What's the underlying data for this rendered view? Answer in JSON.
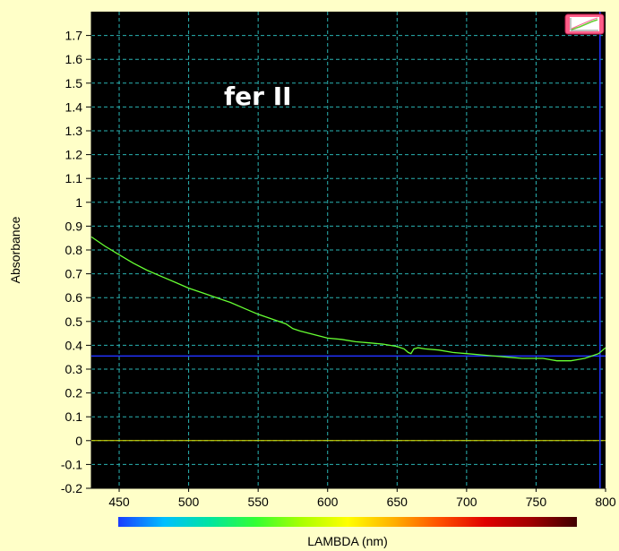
{
  "chart_data": {
    "type": "line",
    "title": "",
    "xlabel": "LAMBDA (nm)",
    "ylabel": "Absorbance",
    "annotation": "fer II",
    "xlim": [
      430,
      800
    ],
    "ylim": [
      -0.2,
      1.8
    ],
    "x_ticks": [
      450,
      500,
      550,
      600,
      650,
      700,
      750,
      800
    ],
    "y_ticks": [
      -0.2,
      -0.1,
      0,
      0.1,
      0.2,
      0.3,
      0.4,
      0.5,
      0.6,
      0.7,
      0.8,
      0.9,
      1,
      1.1,
      1.2,
      1.3,
      1.4,
      1.5,
      1.6,
      1.7
    ],
    "grid": true,
    "cursor": {
      "x": 796,
      "y": 0.355
    },
    "colors": {
      "background": "#ffffc8",
      "plot_background": "#000000",
      "curve": "#66ff33",
      "grid": "#2ab3b3",
      "cursor": "#2233ff",
      "zero_line": "#e6e600"
    },
    "series": [
      {
        "x": [
          430,
          440,
          450,
          460,
          470,
          480,
          490,
          500,
          510,
          520,
          530,
          540,
          550,
          560,
          570,
          575,
          580,
          590,
          600,
          610,
          620,
          630,
          640,
          650,
          655,
          658,
          660,
          662,
          665,
          670,
          680,
          690,
          700,
          710,
          720,
          730,
          740,
          750,
          755,
          760,
          765,
          770,
          775,
          780,
          785,
          790,
          795,
          800
        ],
        "y": [
          0.855,
          0.815,
          0.78,
          0.745,
          0.715,
          0.69,
          0.665,
          0.64,
          0.62,
          0.6,
          0.58,
          0.555,
          0.53,
          0.51,
          0.49,
          0.47,
          0.46,
          0.445,
          0.43,
          0.425,
          0.415,
          0.41,
          0.405,
          0.395,
          0.385,
          0.37,
          0.365,
          0.385,
          0.39,
          0.385,
          0.38,
          0.37,
          0.365,
          0.36,
          0.355,
          0.35,
          0.345,
          0.345,
          0.345,
          0.34,
          0.335,
          0.335,
          0.335,
          0.34,
          0.345,
          0.355,
          0.365,
          0.39
        ]
      }
    ]
  },
  "legend_icon": "chart-legend-icon",
  "spectrum_bar": {
    "colors": [
      "#1a3cff",
      "#00bfff",
      "#00e5a0",
      "#33ff33",
      "#aaff00",
      "#ffff00",
      "#ffb000",
      "#ff5000",
      "#e00000",
      "#a00000",
      "#400000"
    ]
  }
}
